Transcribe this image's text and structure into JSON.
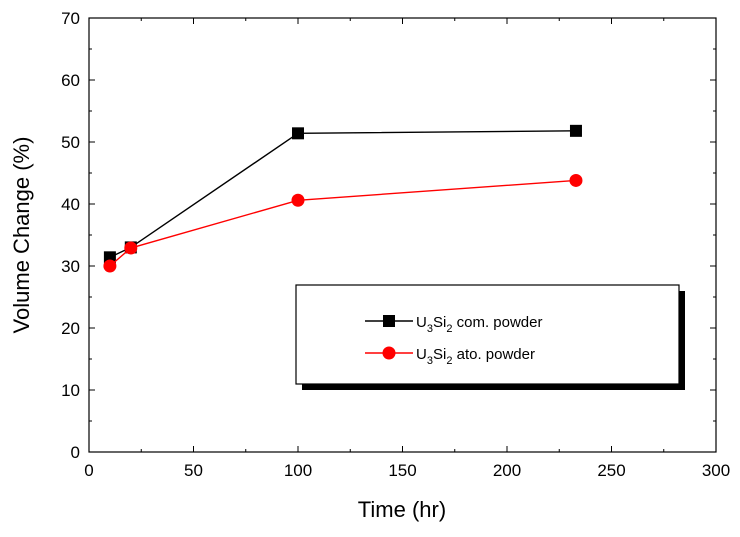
{
  "chart_data": {
    "type": "line",
    "title": "",
    "xlabel": "Time (hr)",
    "ylabel": "Volume Change (%)",
    "xlim": [
      0,
      300
    ],
    "ylim": [
      0,
      70
    ],
    "xticks": [
      "0",
      "50",
      "100",
      "150",
      "200",
      "250",
      "300"
    ],
    "yticks": [
      "0",
      "10",
      "20",
      "30",
      "40",
      "50",
      "60",
      "70"
    ],
    "grid": false,
    "legend_position": "lower-right",
    "series": [
      {
        "name": "U3Si2 com. powder",
        "legend": {
          "pre": "U",
          "sub1": "3",
          "mid": "Si",
          "sub2": "2",
          "post": " com. powder"
        },
        "color": "#000000",
        "marker": "square",
        "x": [
          10,
          20,
          100,
          233
        ],
        "y": [
          31.4,
          33.0,
          51.4,
          51.8
        ]
      },
      {
        "name": "U3Si2 ato. powder",
        "legend": {
          "pre": "U",
          "sub1": "3",
          "mid": "Si",
          "sub2": "2",
          "post": " ato. powder"
        },
        "color": "#ff0000",
        "marker": "circle",
        "x": [
          10,
          20,
          100,
          233
        ],
        "y": [
          30.0,
          32.9,
          40.6,
          43.8
        ]
      }
    ]
  }
}
